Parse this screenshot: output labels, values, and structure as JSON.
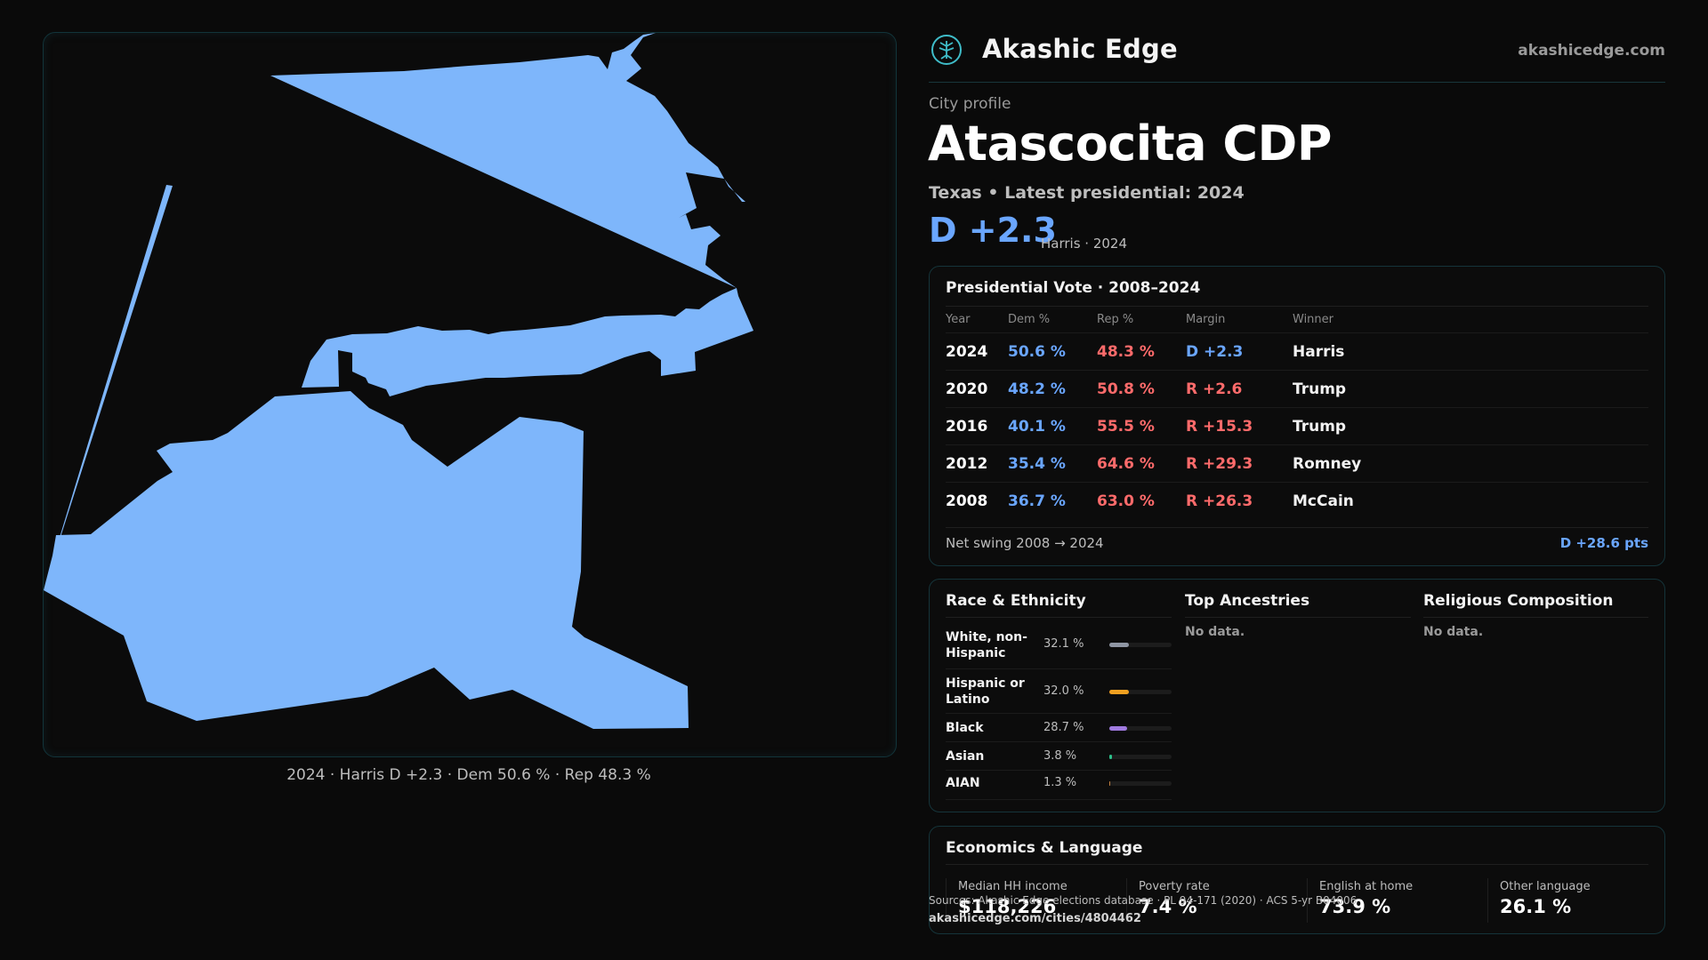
{
  "brand": {
    "name": "Akashic Edge",
    "site": "akashicedge.com",
    "logo_icon": "tree-logo-icon"
  },
  "profile": {
    "eyebrow": "City profile",
    "title": "Atascocita CDP",
    "subline": "Texas • Latest presidential: 2024",
    "margin": "D +2.3",
    "margin_note": "Harris · 2024"
  },
  "map": {
    "caption": "2024 · Harris D +2.3 · Dem 50.6 % · Rep 48.3 %",
    "fill_color": "#7eb6fb"
  },
  "vote": {
    "title": "Presidential Vote · 2008–2024",
    "headers": [
      "Year",
      "Dem %",
      "Rep %",
      "Margin",
      "Winner"
    ],
    "rows": [
      {
        "year": "2024",
        "dem": "50.6 %",
        "rep": "48.3 %",
        "margin": "D +2.3",
        "winner": "Harris"
      },
      {
        "year": "2020",
        "dem": "48.2 %",
        "rep": "50.8 %",
        "margin": "R +2.6",
        "winner": "Trump"
      },
      {
        "year": "2016",
        "dem": "40.1 %",
        "rep": "55.5 %",
        "margin": "R +15.3",
        "winner": "Trump"
      },
      {
        "year": "2012",
        "dem": "35.4 %",
        "rep": "64.6 %",
        "margin": "R +29.3",
        "winner": "Romney"
      },
      {
        "year": "2008",
        "dem": "36.7 %",
        "rep": "63.0 %",
        "margin": "R +26.3",
        "winner": "McCain"
      }
    ],
    "swing_label": "Net swing 2008 → 2024",
    "swing_value": "D +28.6 pts"
  },
  "race": {
    "title": "Race & Ethnicity",
    "items": [
      {
        "label": "White, non-Hispanic",
        "pct": "32.1 %",
        "value": 32.1,
        "color": "#8f96a3"
      },
      {
        "label": "Hispanic or Latino",
        "pct": "32.0 %",
        "value": 32.0,
        "color": "#f0a020"
      },
      {
        "label": "Black",
        "pct": "28.7 %",
        "value": 28.7,
        "color": "#a07be0"
      },
      {
        "label": "Asian",
        "pct": "3.8 %",
        "value": 3.8,
        "color": "#2cc08a"
      },
      {
        "label": "AIAN",
        "pct": "1.3 %",
        "value": 1.3,
        "color": "#c08040"
      }
    ]
  },
  "ancestry": {
    "title": "Top Ancestries",
    "empty": "No data."
  },
  "religion": {
    "title": "Religious Composition",
    "empty": "No data."
  },
  "econ": {
    "title": "Economics & Language",
    "items": [
      {
        "label": "Median HH income",
        "value": "$118,226"
      },
      {
        "label": "Poverty rate",
        "value": "7.4 %"
      },
      {
        "label": "English at home",
        "value": "73.9 %"
      },
      {
        "label": "Other language",
        "value": "26.1 %"
      }
    ]
  },
  "footer": {
    "source": "Sources: Akashic Edge elections database · PL 94-171 (2020) · ACS 5-yr B04006",
    "url": "akashicedge.com/cities/4804462"
  }
}
